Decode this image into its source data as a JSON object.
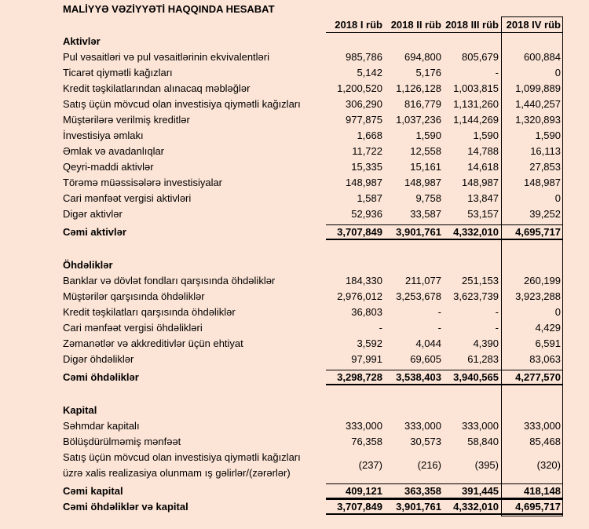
{
  "title": "MALİYYƏ VƏZİYYƏTİ HAQQINDA HESABAT",
  "header": [
    "2018 I rüb",
    "2018 II rüb",
    "2018 III rüb",
    "2018 IV rüb"
  ],
  "sections": [
    {
      "title": "Aktivlər",
      "rows": [
        {
          "label": "Pul vəsaitləri və pul vəsaitlərinin ekvivalentləri",
          "values": [
            "985,786",
            "694,800",
            "805,679",
            "600,884"
          ]
        },
        {
          "label": "Ticarət qiymətli kağızları",
          "values": [
            "5,142",
            "5,176",
            "-",
            "0"
          ]
        },
        {
          "label": "Kredit təşkilatlarından alınacaq məbləğlər",
          "values": [
            "1,200,520",
            "1,126,128",
            "1,003,815",
            "1,099,889"
          ]
        },
        {
          "label": "Satış üçün mövcud olan investisiya qiymətli kağızları",
          "values": [
            "306,290",
            "816,779",
            "1,131,260",
            "1,440,257"
          ]
        },
        {
          "label": "Müştərilərə verilmiş kreditlər",
          "values": [
            "977,875",
            "1,037,236",
            "1,144,269",
            "1,320,893"
          ]
        },
        {
          "label": "İnvestisiya əmlakı",
          "values": [
            "1,668",
            "1,590",
            "1,590",
            "1,590"
          ]
        },
        {
          "label": "Əmlak və avadanlıqlar",
          "values": [
            "11,722",
            "12,558",
            "14,788",
            "16,113"
          ]
        },
        {
          "label": "Qeyri-maddi aktivlər",
          "values": [
            "15,335",
            "15,161",
            "14,618",
            "27,853"
          ]
        },
        {
          "label": "Törəmə müəssisələrə investisiyalar",
          "values": [
            "148,987",
            "148,987",
            "148,987",
            "148,987"
          ]
        },
        {
          "label": "Cari mənfəət vergisi aktivləri",
          "values": [
            "1,587",
            "9,758",
            "13,847",
            "0"
          ]
        },
        {
          "label": "Digər aktivlər",
          "values": [
            "52,936",
            "33,587",
            "53,157",
            "39,252"
          ]
        }
      ],
      "total": {
        "label": "Cəmi aktivlər",
        "values": [
          "3,707,849",
          "3,901,761",
          "4,332,010",
          "4,695,717"
        ]
      }
    },
    {
      "title": "Öhdəliklər",
      "rows": [
        {
          "label": "Banklar və dövlət fondları qarşısında öhdəliklər",
          "values": [
            "184,330",
            "211,077",
            "251,153",
            "260,199"
          ]
        },
        {
          "label": "Müştərilər qarşısında öhdəliklər",
          "values": [
            "2,976,012",
            "3,253,678",
            "3,623,739",
            "3,923,288"
          ]
        },
        {
          "label": "Kredit təşkilatları qarşısında öhdəliklər",
          "values": [
            "36,803",
            "-",
            "-",
            "0"
          ]
        },
        {
          "label": "Cari mənfəət vergisi öhdəlikləri",
          "values": [
            "-",
            "-",
            "-",
            "4,429"
          ]
        },
        {
          "label": "Zəmanətlər və akkreditivlər üçün ehtiyat",
          "values": [
            "3,592",
            "4,044",
            "4,390",
            "6,591"
          ]
        },
        {
          "label": "Digər öhdəliklər",
          "values": [
            "97,991",
            "69,605",
            "61,283",
            "83,063"
          ]
        }
      ],
      "total": {
        "label": "Cəmi öhdəliklər",
        "values": [
          "3,298,728",
          "3,538,403",
          "3,940,565",
          "4,277,570"
        ]
      }
    },
    {
      "title": "Kapital",
      "rows": [
        {
          "label": "Səhmdar kapitalı",
          "values": [
            "333,000",
            "333,000",
            "333,000",
            "333,000"
          ]
        },
        {
          "label": "Bölüşdürülməmiş mənfəət",
          "values": [
            "76,358",
            "30,573",
            "58,840",
            "85,468"
          ]
        },
        {
          "label": "Satış üçün mövcud olan investisiya qiymətli kağızları\nüzrə xalis realizasiya olunmam ış gəlirlər/(zərərlər)",
          "values": [
            "(237)",
            "(216)",
            "(395)",
            "(320)"
          ]
        }
      ],
      "total": {
        "label": "Cəmi kapital",
        "values": [
          "409,121",
          "363,358",
          "391,445",
          "418,148"
        ]
      }
    }
  ],
  "grand_total": {
    "label": "Cəmi öhdəliklər və kapital",
    "values": [
      "3,707,849",
      "3,901,761",
      "4,332,010",
      "4,695,717"
    ]
  }
}
